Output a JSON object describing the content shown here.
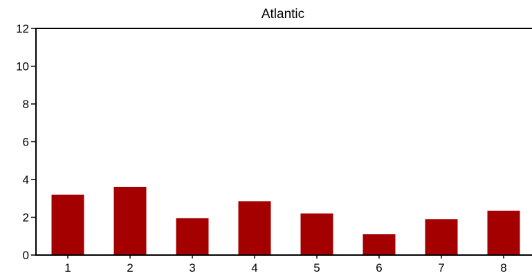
{
  "chart_data": {
    "type": "bar",
    "title": "Atlantic",
    "xlabel": "",
    "ylabel": "",
    "categories": [
      "1",
      "2",
      "3",
      "4",
      "5",
      "6",
      "7",
      "8"
    ],
    "values": [
      3.2,
      3.6,
      1.95,
      2.85,
      2.2,
      1.1,
      1.9,
      2.35
    ],
    "ylim": [
      0,
      12
    ],
    "yticks": [
      "0",
      "2",
      "4",
      "6",
      "8",
      "10",
      "12"
    ],
    "grid": false,
    "bar_color": "#a50000"
  }
}
